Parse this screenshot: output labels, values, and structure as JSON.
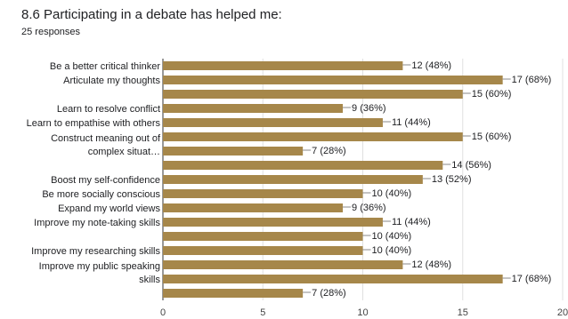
{
  "title": "8.6 Participating in a debate has helped me:",
  "subtitle": "25 responses",
  "colors": {
    "bar": "#a6874a",
    "grid": "#e0e0e0",
    "axis": "#333333",
    "leader": "#888888"
  },
  "chart_data": {
    "type": "bar",
    "orientation": "horizontal",
    "total_responses": 25,
    "categories": [
      [
        "Be a better critical thinker"
      ],
      [
        "Articulate my thoughts"
      ],
      [],
      [
        "Learn to resolve conflict"
      ],
      [
        "Learn to empathise with others"
      ],
      [],
      [
        "Construct meaning out of",
        "complex situat…"
      ],
      [],
      [
        "Boost my self-confidence"
      ],
      [
        "Be more socially conscious"
      ],
      [
        "Expand my world views"
      ],
      [
        "Improve my note-taking skills"
      ],
      [],
      [
        "Improve my researching skills"
      ],
      [],
      [
        "Improve my public speaking",
        "skills"
      ],
      []
    ],
    "values": [
      12,
      17,
      15,
      9,
      11,
      15,
      7,
      14,
      13,
      10,
      9,
      11,
      10,
      10,
      12,
      17,
      7
    ],
    "value_labels": [
      "12 (48%)",
      "17 (68%)",
      "15 (60%)",
      "9 (36%)",
      "11 (44%)",
      "15 (60%)",
      "7 (28%)",
      "14 (56%)",
      "13 (52%)",
      "10 (40%)",
      "9 (36%)",
      "11 (44%)",
      "10 (40%)",
      "10 (40%)",
      "12 (48%)",
      "17 (68%)",
      "7 (28%)"
    ],
    "xlim": [
      0,
      20
    ],
    "xticks": [
      "0",
      "5",
      "10",
      "15",
      "20"
    ],
    "grid": true,
    "legend": "none"
  }
}
